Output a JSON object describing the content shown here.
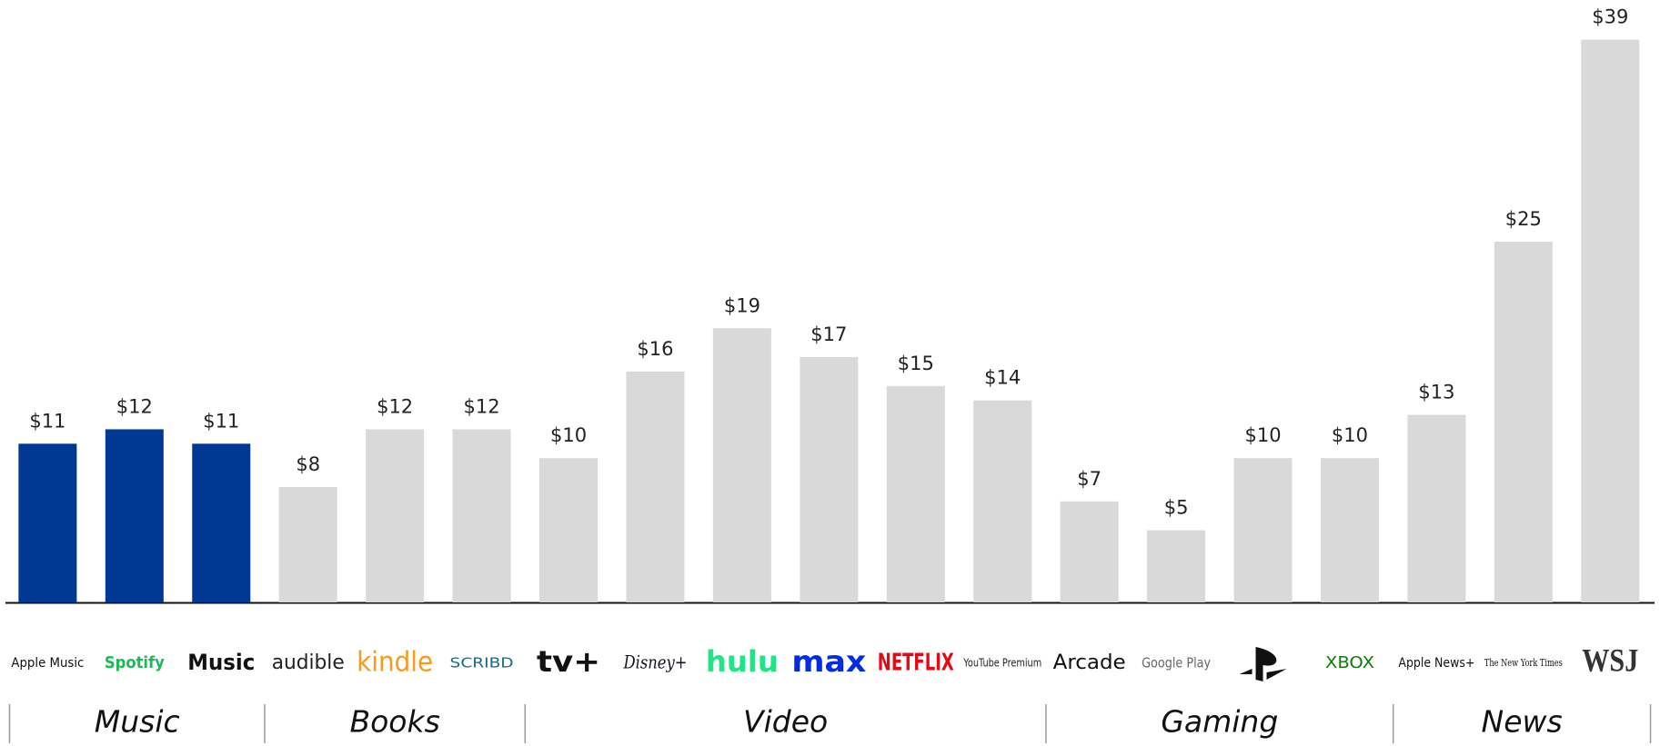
{
  "chart_data": {
    "type": "bar",
    "categories": [
      "Apple Music",
      "Spotify",
      "Music",
      "audible",
      "kindle",
      "SCRIBD",
      "tv+",
      "Disney+",
      "hulu",
      "max",
      "NETFLIX",
      "YouTube Premium",
      "Arcade",
      "Google Play",
      null,
      "XBOX",
      "Apple News+",
      "The New York Times",
      "WSJ"
    ],
    "values": [
      11,
      12,
      11,
      8,
      12,
      12,
      10,
      16,
      19,
      17,
      15,
      14,
      7,
      5,
      10,
      10,
      13,
      25,
      39
    ],
    "value_labels": [
      "$11",
      "$12",
      "$11",
      "$8",
      "$12",
      "$12",
      "$10",
      "$16",
      "$19",
      "$17",
      "$15",
      "$14",
      "$7",
      "$5",
      "$10",
      "$10",
      "$13",
      "$25",
      "$39"
    ],
    "colors": [
      "#003893",
      "#003893",
      "#003893",
      "#d9d9d9",
      "#d9d9d9",
      "#d9d9d9",
      "#d9d9d9",
      "#d9d9d9",
      "#d9d9d9",
      "#d9d9d9",
      "#d9d9d9",
      "#d9d9d9",
      "#d9d9d9",
      "#d9d9d9",
      "#d9d9d9",
      "#d9d9d9",
      "#d9d9d9",
      "#d9d9d9",
      "#d9d9d9"
    ],
    "groups": [
      {
        "name": "Music",
        "size": 3
      },
      {
        "name": "Books",
        "size": 3
      },
      {
        "name": "Video",
        "size": 6
      },
      {
        "name": "Gaming",
        "size": 4
      },
      {
        "name": "News",
        "size": 3
      }
    ]
  }
}
